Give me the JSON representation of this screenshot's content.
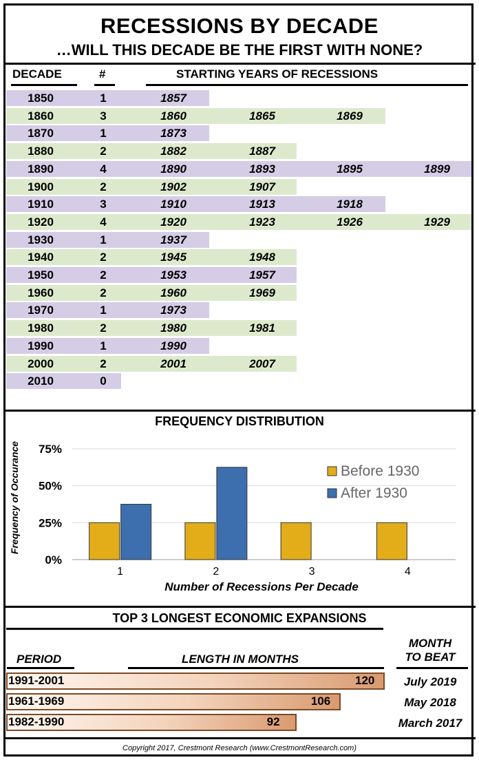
{
  "title": "RECESSIONS BY DECADE",
  "subtitle": "…WILL THIS DECADE BE THE FIRST WITH NONE?",
  "table": {
    "headers": {
      "decade": "DECADE",
      "count": "#",
      "years": "STARTING YEARS OF RECESSIONS"
    },
    "rows": [
      {
        "decade": "1850",
        "count": "1",
        "years": [
          "1857"
        ]
      },
      {
        "decade": "1860",
        "count": "3",
        "years": [
          "1860",
          "1865",
          "1869"
        ]
      },
      {
        "decade": "1870",
        "count": "1",
        "years": [
          "1873"
        ]
      },
      {
        "decade": "1880",
        "count": "2",
        "years": [
          "1882",
          "1887"
        ]
      },
      {
        "decade": "1890",
        "count": "4",
        "years": [
          "1890",
          "1893",
          "1895",
          "1899"
        ]
      },
      {
        "decade": "1900",
        "count": "2",
        "years": [
          "1902",
          "1907"
        ]
      },
      {
        "decade": "1910",
        "count": "3",
        "years": [
          "1910",
          "1913",
          "1918"
        ]
      },
      {
        "decade": "1920",
        "count": "4",
        "years": [
          "1920",
          "1923",
          "1926",
          "1929"
        ]
      },
      {
        "decade": "1930",
        "count": "1",
        "years": [
          "1937"
        ]
      },
      {
        "decade": "1940",
        "count": "2",
        "years": [
          "1945",
          "1948"
        ]
      },
      {
        "decade": "1950",
        "count": "2",
        "years": [
          "1953",
          "1957"
        ]
      },
      {
        "decade": "1960",
        "count": "2",
        "years": [
          "1960",
          "1969"
        ]
      },
      {
        "decade": "1970",
        "count": "1",
        "years": [
          "1973"
        ]
      },
      {
        "decade": "1980",
        "count": "2",
        "years": [
          "1980",
          "1981"
        ]
      },
      {
        "decade": "1990",
        "count": "1",
        "years": [
          "1990"
        ]
      },
      {
        "decade": "2000",
        "count": "2",
        "years": [
          "2001",
          "2007"
        ]
      },
      {
        "decade": "2010",
        "count": "0",
        "years": []
      }
    ],
    "colors": {
      "purple": "#d5cce6",
      "green": "#dde9cc"
    }
  },
  "chart_data": {
    "type": "bar",
    "title": "FREQUENCY DISTRIBUTION",
    "xlabel": "Number of Recessions Per Decade",
    "ylabel": "Frequency of Occurance",
    "categories": [
      "1",
      "2",
      "3",
      "4"
    ],
    "series": [
      {
        "name": "Before 1930",
        "values": [
          0.25,
          0.25,
          0.25,
          0.25
        ],
        "color": "#e3ad1a"
      },
      {
        "name": "After 1930",
        "values": [
          0.375,
          0.625,
          0,
          0
        ],
        "color": "#3d6fae"
      }
    ],
    "ylim": [
      0,
      0.75
    ],
    "yticks": [
      "0%",
      "25%",
      "50%",
      "75%"
    ],
    "grid": true,
    "legend": "right"
  },
  "expansions": {
    "title": "TOP 3 LONGEST ECONOMIC EXPANSIONS",
    "headers": {
      "period": "PERIOD",
      "length": "LENGTH IN MONTHS",
      "month_line1": "MONTH",
      "month_line2": "TO BEAT"
    },
    "rows": [
      {
        "period": "1991-2001",
        "months": 120,
        "month_to_beat": "July 2019"
      },
      {
        "period": "1961-1969",
        "months": 106,
        "month_to_beat": "May 2018"
      },
      {
        "period": "1982-1990",
        "months": 92,
        "month_to_beat": "March 2017"
      }
    ]
  },
  "copyright": "Copyright 2017, Crestmont Research (www.CrestmontResearch.com)"
}
